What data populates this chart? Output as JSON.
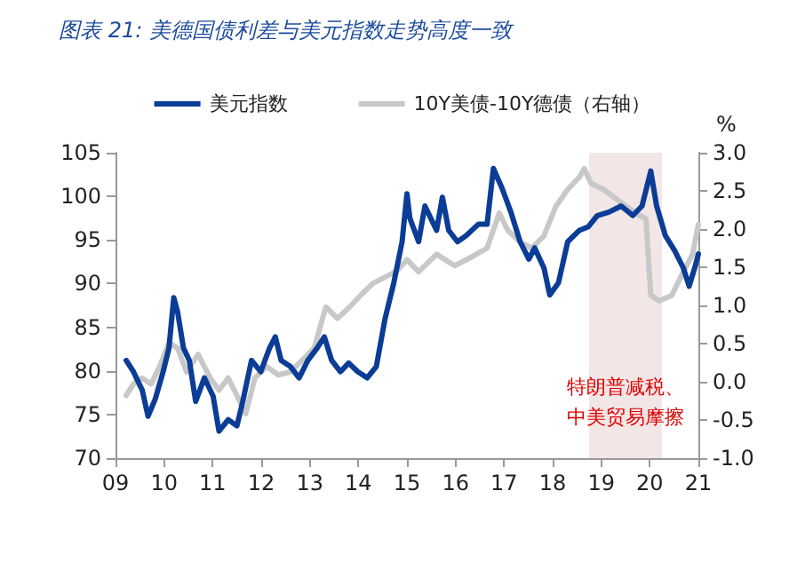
{
  "chart_data": {
    "type": "line",
    "title": "图表 21: 美德国债利差与美元指数走势高度一致",
    "y2label": "%",
    "legend": "top",
    "grid": false,
    "marker": "none",
    "line_style": "solid",
    "xlim": [
      2009,
      2021
    ],
    "xticks": [
      {
        "value": 2009,
        "label": "09"
      },
      {
        "value": 2010,
        "label": "10"
      },
      {
        "value": 2011,
        "label": "11"
      },
      {
        "value": 2012,
        "label": "12"
      },
      {
        "value": 2013,
        "label": "13"
      },
      {
        "value": 2014,
        "label": "14"
      },
      {
        "value": 2015,
        "label": "15"
      },
      {
        "value": 2016,
        "label": "16"
      },
      {
        "value": 2017,
        "label": "17"
      },
      {
        "value": 2018,
        "label": "18"
      },
      {
        "value": 2019,
        "label": "19"
      },
      {
        "value": 2020,
        "label": "20"
      },
      {
        "value": 2021,
        "label": "21"
      }
    ],
    "ylim": [
      70,
      105
    ],
    "yticks": [
      70,
      75,
      80,
      85,
      90,
      95,
      100,
      105
    ],
    "y2lim": [
      -1,
      3
    ],
    "y2ticks": [
      {
        "value": -1,
        "label": "-1.0"
      },
      {
        "value": -0.5,
        "label": "-0.5"
      },
      {
        "value": 0,
        "label": "0.0"
      },
      {
        "value": 0.5,
        "label": "0.5"
      },
      {
        "value": 1,
        "label": "1.0"
      },
      {
        "value": 1.5,
        "label": "1.5"
      },
      {
        "value": 2,
        "label": "2.0"
      },
      {
        "value": 2.5,
        "label": "2.5"
      },
      {
        "value": 3,
        "label": "3.0"
      }
    ],
    "bands": [
      {
        "axis": "x",
        "from": 2018.75,
        "to": 2020.25,
        "color": "#f3e6e6"
      }
    ],
    "annotations": [
      "特朗普减税、",
      "中美贸易摩擦"
    ],
    "series": [
      {
        "name": "美元指数",
        "color": "#0b3d96",
        "x": [
          2009.22,
          2009.37,
          2009.55,
          2009.67,
          2009.82,
          2009.98,
          2010.1,
          2010.2,
          2010.28,
          2010.4,
          2010.52,
          2010.65,
          2010.83,
          2011.01,
          2011.13,
          2011.32,
          2011.5,
          2011.62,
          2011.8,
          2011.99,
          2012.17,
          2012.29,
          2012.41,
          2012.6,
          2012.78,
          2012.96,
          2013.15,
          2013.3,
          2013.45,
          2013.63,
          2013.8,
          2013.99,
          2014.18,
          2014.37,
          2014.55,
          2014.73,
          2014.9,
          2015.0,
          2015.06,
          2015.24,
          2015.37,
          2015.61,
          2015.73,
          2015.86,
          2016.04,
          2016.22,
          2016.47,
          2016.65,
          2016.78,
          2016.96,
          2017.14,
          2017.33,
          2017.51,
          2017.63,
          2017.82,
          2017.94,
          2018.12,
          2018.31,
          2018.55,
          2018.73,
          2018.92,
          2019.16,
          2019.41,
          2019.65,
          2019.84,
          2020.02,
          2020.14,
          2020.32,
          2020.51,
          2020.69,
          2020.81,
          2020.94,
          2021.0
        ],
        "values": [
          81.2,
          79.9,
          77.8,
          74.8,
          76.8,
          79.9,
          82.6,
          88.4,
          86.7,
          82.6,
          81.2,
          76.5,
          79.2,
          77.1,
          73.1,
          74.4,
          73.7,
          76.5,
          81.2,
          79.9,
          82.6,
          83.9,
          81.2,
          80.5,
          79.2,
          81.2,
          82.6,
          83.9,
          81.2,
          79.9,
          80.9,
          79.9,
          79.2,
          80.5,
          86.0,
          90.1,
          94.8,
          100.3,
          97.5,
          94.8,
          98.9,
          96.1,
          99.9,
          96.1,
          94.8,
          95.5,
          96.8,
          96.8,
          103.2,
          100.9,
          98.2,
          94.8,
          92.8,
          94.1,
          91.8,
          88.7,
          90.1,
          94.8,
          96.1,
          96.5,
          97.8,
          98.2,
          98.9,
          97.8,
          98.9,
          102.9,
          98.9,
          95.5,
          93.8,
          91.8,
          89.7,
          92.1,
          93.4
        ]
      },
      {
        "name": "10Y美债-10Y德债（右轴）",
        "color": "#c8c8c8",
        "axis": "y2",
        "x": [
          2009.22,
          2009.37,
          2009.55,
          2009.73,
          2009.91,
          2010.1,
          2010.28,
          2010.46,
          2010.7,
          2010.95,
          2011.13,
          2011.32,
          2011.5,
          2011.68,
          2011.87,
          2012.11,
          2012.35,
          2012.6,
          2012.84,
          2013.09,
          2013.33,
          2013.57,
          2013.82,
          2014.06,
          2014.3,
          2014.55,
          2014.79,
          2015.0,
          2015.24,
          2015.61,
          2015.98,
          2016.35,
          2016.65,
          2016.9,
          2017.08,
          2017.33,
          2017.57,
          2017.82,
          2018.06,
          2018.31,
          2018.55,
          2018.65,
          2018.79,
          2019.04,
          2019.28,
          2019.53,
          2019.78,
          2019.92,
          2020.02,
          2020.2,
          2020.45,
          2020.69,
          2020.88,
          2021.0
        ],
        "values": [
          -0.18,
          -0.03,
          0.05,
          -0.03,
          0.2,
          0.51,
          0.44,
          0.13,
          0.36,
          0.05,
          -0.11,
          0.05,
          -0.18,
          -0.42,
          0.05,
          0.2,
          0.09,
          0.13,
          0.28,
          0.44,
          0.98,
          0.83,
          0.98,
          1.14,
          1.29,
          1.37,
          1.45,
          1.6,
          1.44,
          1.67,
          1.52,
          1.64,
          1.75,
          2.21,
          1.98,
          1.83,
          1.75,
          1.91,
          2.29,
          2.52,
          2.68,
          2.79,
          2.6,
          2.52,
          2.41,
          2.29,
          2.18,
          2.14,
          1.13,
          1.06,
          1.13,
          1.44,
          1.67,
          2.06
        ]
      }
    ]
  }
}
